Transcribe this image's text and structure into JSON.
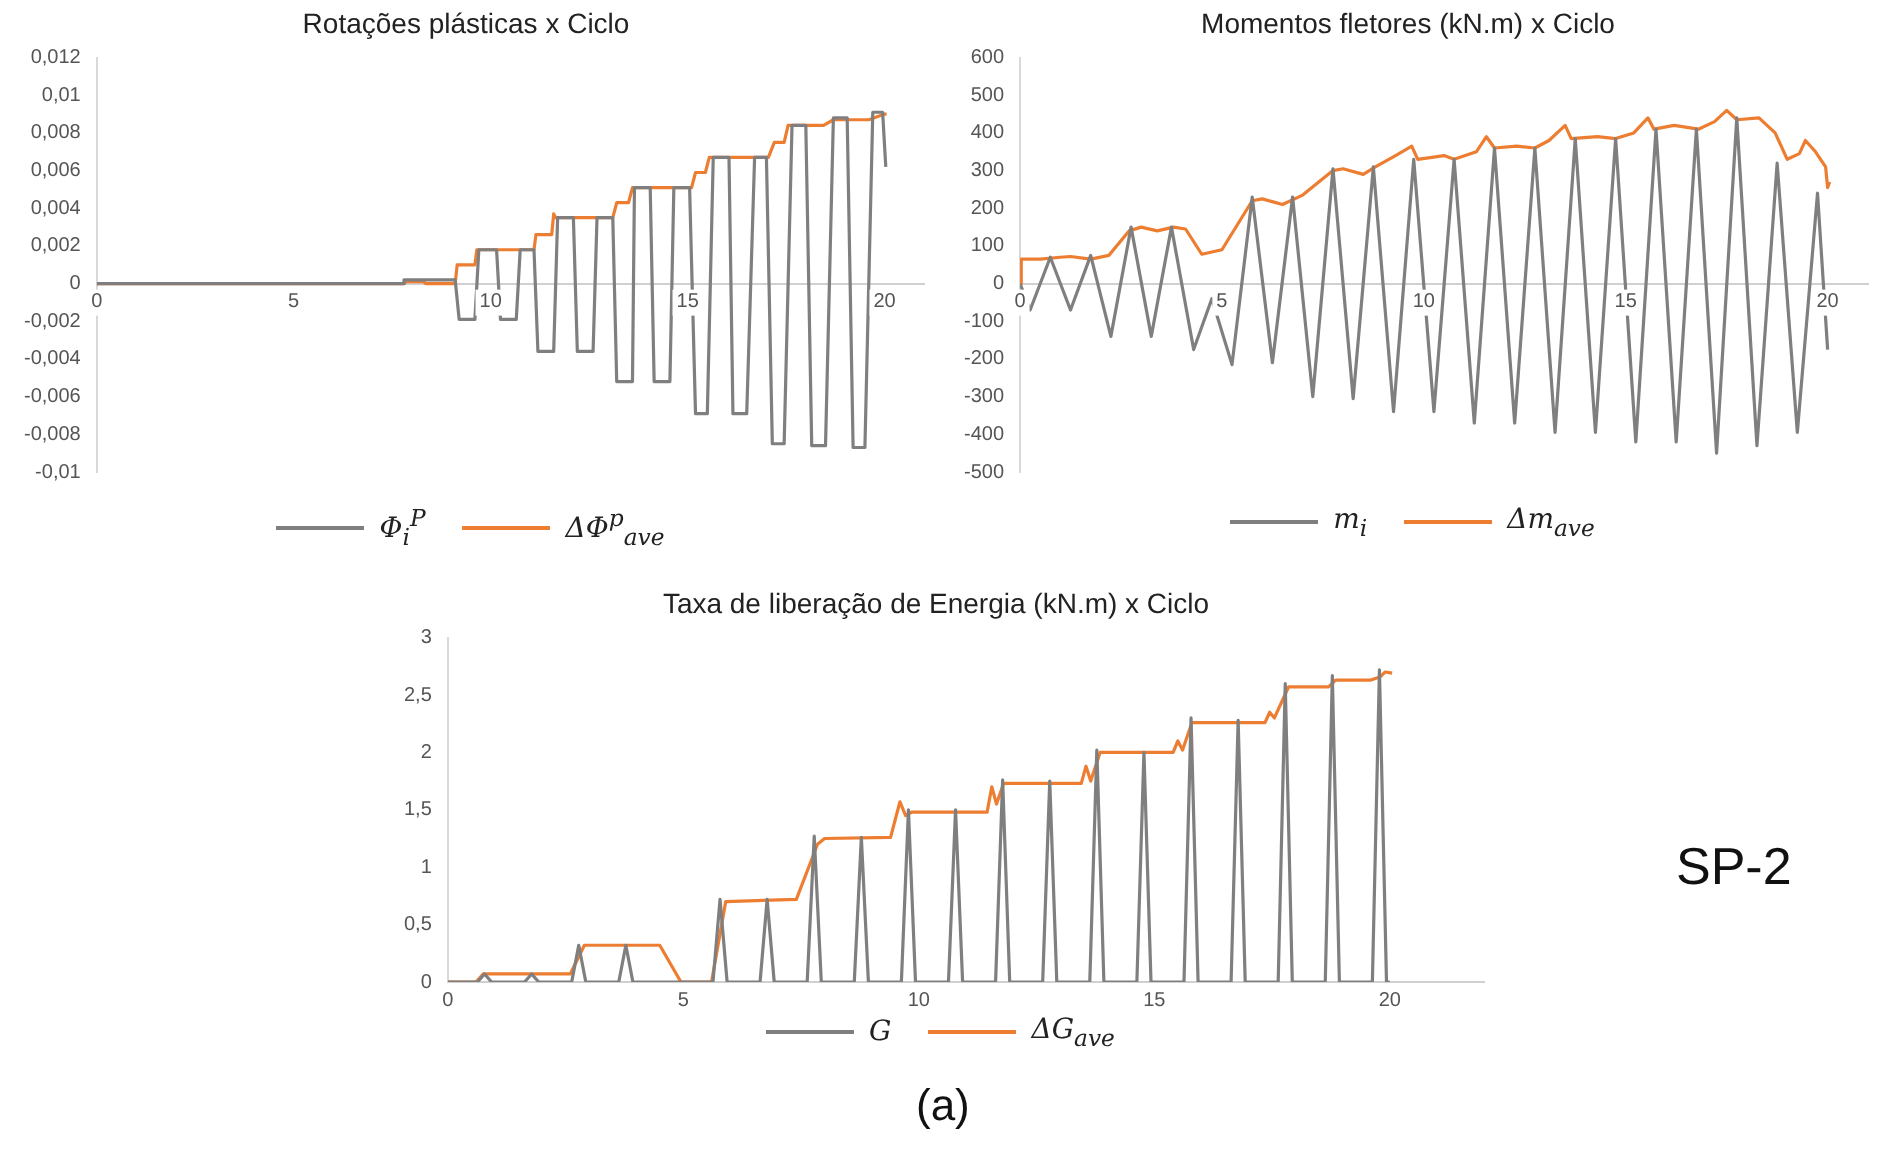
{
  "chart_data": [
    {
      "type": "line",
      "title": "Rotações plásticas x Ciclo",
      "legend": "bottom",
      "marker": "none",
      "xlim": [
        0,
        21
      ],
      "xticks": [
        0,
        5,
        10,
        15,
        20
      ],
      "ylim": [
        -0.01,
        0.012
      ],
      "yticks": [
        {
          "value": -0.01,
          "label": "-0,01"
        },
        {
          "value": -0.008,
          "label": "-0,008"
        },
        {
          "value": -0.006,
          "label": "-0,006"
        },
        {
          "value": -0.004,
          "label": "-0,004"
        },
        {
          "value": -0.002,
          "label": "-0,002"
        },
        0,
        {
          "value": 0.002,
          "label": "0,002"
        },
        {
          "value": 0.004,
          "label": "0,004"
        },
        {
          "value": 0.006,
          "label": "0,006"
        },
        {
          "value": 0.008,
          "label": "0,008"
        },
        {
          "value": 0.01,
          "label": "0,01"
        },
        {
          "value": 0.012,
          "label": "0,012"
        }
      ],
      "series": [
        {
          "name": "Φ$_{i}$$^{P}$",
          "color": "#7f7f7f",
          "x": [
            0,
            7.75,
            7.8,
            9.1,
            9.2,
            9.6,
            9.7,
            10.15,
            10.25,
            10.65,
            10.75,
            11.1,
            11.2,
            11.6,
            11.7,
            12.1,
            12.2,
            12.6,
            12.7,
            13.1,
            13.2,
            13.6,
            13.65,
            14.05,
            14.15,
            14.55,
            14.65,
            15.05,
            15.2,
            15.5,
            15.65,
            16.05,
            16.15,
            16.5,
            16.7,
            17.0,
            17.15,
            17.45,
            17.65,
            18.0,
            18.15,
            18.5,
            18.7,
            19.05,
            19.2,
            19.5,
            19.7,
            19.95,
            20.03
          ],
          "values": [
            0,
            0,
            0.0002,
            0.0002,
            -0.0019,
            -0.0019,
            0.0018,
            0.0018,
            -0.0019,
            -0.0019,
            0.0018,
            0.0018,
            -0.0036,
            -0.0036,
            0.0035,
            0.0035,
            -0.0036,
            -0.0036,
            0.0035,
            0.0035,
            -0.0052,
            -0.0052,
            0.0051,
            0.0051,
            -0.0052,
            -0.0052,
            0.0051,
            0.0051,
            -0.0069,
            -0.0069,
            0.0067,
            0.0067,
            -0.0069,
            -0.0069,
            0.0067,
            0.0067,
            -0.0085,
            -0.0085,
            0.0084,
            0.0084,
            -0.0086,
            -0.0086,
            0.0088,
            0.0088,
            -0.0087,
            -0.0087,
            0.0091,
            0.0091,
            0.0062
          ]
        },
        {
          "name": "ΔΦ$^{p}$$_{ave}$",
          "color": "#ed7d31",
          "x": [
            0,
            7.8,
            7.85,
            8.3,
            8.35,
            9.1,
            9.15,
            9.6,
            9.65,
            11.1,
            11.15,
            11.55,
            11.6,
            11.65,
            13.1,
            13.2,
            13.5,
            13.6,
            15.1,
            15.2,
            15.45,
            15.55,
            17.05,
            17.2,
            17.45,
            17.55,
            18.45,
            18.7,
            19.6,
            20.0,
            20.05
          ],
          "values": [
            0,
            0,
            0.0001,
            0.0001,
            0,
            0,
            0.001,
            0.001,
            0.0018,
            0.0018,
            0.0026,
            0.0026,
            0.0037,
            0.0035,
            0.0035,
            0.0043,
            0.0043,
            0.0051,
            0.0051,
            0.0059,
            0.0059,
            0.0067,
            0.0067,
            0.0075,
            0.0075,
            0.0084,
            0.0084,
            0.0087,
            0.0087,
            0.009,
            0.009
          ]
        }
      ]
    },
    {
      "type": "line",
      "title": "Momentos fletores (kN.m) x Ciclo",
      "legend": "bottom",
      "marker": "none",
      "xlim": [
        0,
        21
      ],
      "xticks": [
        0,
        5,
        10,
        15,
        20
      ],
      "ylim": [
        -500,
        600
      ],
      "yticks": [
        -500,
        -400,
        -300,
        -200,
        -100,
        0,
        100,
        200,
        300,
        400,
        500,
        600
      ],
      "series": [
        {
          "name": "m$_{i}$",
          "color": "#7f7f7f",
          "x": [
            0,
            0.25,
            0.75,
            1.25,
            1.75,
            2.25,
            2.75,
            3.25,
            3.75,
            4.3,
            4.75,
            5.25,
            5.75,
            6.25,
            6.75,
            7.25,
            7.75,
            8.25,
            8.75,
            9.25,
            9.75,
            10.25,
            10.75,
            11.25,
            11.75,
            12.25,
            12.75,
            13.25,
            13.75,
            14.25,
            14.75,
            15.25,
            15.75,
            16.25,
            16.75,
            17.25,
            17.75,
            18.25,
            18.75,
            19.25,
            19.75,
            20.0
          ],
          "values": [
            0,
            -70,
            70,
            -70,
            75,
            -140,
            150,
            -140,
            150,
            -175,
            -40,
            -215,
            230,
            -210,
            230,
            -300,
            305,
            -305,
            310,
            -340,
            330,
            -340,
            330,
            -370,
            360,
            -370,
            360,
            -395,
            385,
            -395,
            385,
            -420,
            410,
            -420,
            410,
            -450,
            440,
            -430,
            320,
            -395,
            240,
            -175
          ]
        },
        {
          "name": "Δm$_{ave}$",
          "color": "#ed7d31",
          "x": [
            0,
            0.03,
            0.5,
            1.0,
            1.25,
            1.75,
            2.2,
            2.7,
            3.0,
            3.4,
            3.8,
            4.1,
            4.5,
            5.0,
            5.75,
            6.0,
            6.5,
            7.0,
            7.75,
            8.0,
            8.5,
            8.8,
            9.3,
            9.7,
            9.85,
            10.2,
            10.5,
            10.75,
            11.3,
            11.55,
            11.75,
            12.3,
            12.75,
            13.1,
            13.5,
            13.65,
            14.3,
            14.75,
            15.2,
            15.55,
            15.7,
            16.2,
            16.8,
            17.2,
            17.5,
            17.75,
            18.3,
            18.7,
            19.0,
            19.3,
            19.45,
            19.7,
            19.95,
            20.0,
            20.05
          ],
          "values": [
            0,
            65,
            65,
            70,
            72,
            65,
            75,
            140,
            150,
            140,
            150,
            145,
            78,
            90,
            220,
            225,
            210,
            235,
            300,
            305,
            290,
            310,
            340,
            365,
            330,
            335,
            340,
            330,
            350,
            390,
            360,
            365,
            360,
            380,
            420,
            385,
            390,
            385,
            400,
            440,
            410,
            420,
            410,
            430,
            460,
            435,
            440,
            400,
            330,
            345,
            380,
            350,
            310,
            255,
            270
          ]
        }
      ]
    },
    {
      "type": "line",
      "title": "Taxa de liberação de Energia (kN.m) x Ciclo",
      "legend": "bottom",
      "marker": "none",
      "annotations": [
        "SP-2",
        "(a)"
      ],
      "xlim": [
        0,
        22
      ],
      "xticks": [
        0,
        5,
        10,
        15,
        20
      ],
      "ylim": [
        0,
        3
      ],
      "yticks": [
        0,
        {
          "value": 0.5,
          "label": "0,5"
        },
        1,
        {
          "value": 1.5,
          "label": "1,5"
        },
        2,
        {
          "value": 2.5,
          "label": "2,5"
        },
        3
      ],
      "series": [
        {
          "name": "G",
          "color": "#7f7f7f",
          "x": [
            0,
            0.63,
            0.78,
            0.93,
            1.63,
            1.78,
            1.93,
            2.63,
            2.78,
            2.93,
            3.63,
            3.78,
            3.93,
            5.63,
            5.78,
            5.93,
            6.63,
            6.78,
            6.93,
            7.63,
            7.78,
            7.93,
            8.63,
            8.78,
            8.93,
            9.63,
            9.78,
            9.93,
            10.63,
            10.78,
            10.93,
            11.63,
            11.78,
            11.93,
            12.63,
            12.78,
            12.93,
            13.63,
            13.78,
            13.93,
            14.63,
            14.78,
            14.93,
            15.63,
            15.78,
            15.93,
            16.63,
            16.78,
            16.93,
            17.63,
            17.78,
            17.93,
            18.63,
            18.78,
            18.93,
            19.63,
            19.78,
            19.93,
            20.0
          ],
          "values": [
            0,
            0,
            0.07,
            0,
            0,
            0.07,
            0,
            0,
            0.32,
            0,
            0,
            0.32,
            0,
            0,
            0.72,
            0,
            0,
            0.72,
            0,
            0,
            1.27,
            0,
            0,
            1.26,
            0,
            0,
            1.5,
            0,
            0,
            1.5,
            0,
            0,
            1.76,
            0,
            0,
            1.75,
            0,
            0,
            2.02,
            0,
            0,
            2.0,
            0,
            0,
            2.3,
            0,
            0,
            2.28,
            0,
            0,
            2.6,
            0,
            0,
            2.67,
            0,
            0,
            2.72,
            0,
            0
          ]
        },
        {
          "name": "ΔG$_{ave}$",
          "color": "#ed7d31",
          "x": [
            0,
            0.6,
            0.75,
            2.6,
            2.9,
            4.5,
            4.95,
            5.6,
            5.9,
            7.4,
            7.85,
            8.0,
            9.4,
            9.6,
            9.72,
            9.85,
            11.45,
            11.55,
            11.65,
            11.8,
            13.45,
            13.55,
            13.65,
            13.85,
            15.4,
            15.5,
            15.6,
            15.8,
            17.35,
            17.45,
            17.55,
            17.85,
            18.7,
            18.85,
            19.6,
            19.8,
            19.9,
            20.05
          ],
          "values": [
            0,
            0,
            0.07,
            0.07,
            0.32,
            0.32,
            0,
            0,
            0.7,
            0.72,
            1.2,
            1.25,
            1.26,
            1.57,
            1.45,
            1.48,
            1.48,
            1.7,
            1.55,
            1.73,
            1.73,
            1.88,
            1.75,
            2.0,
            2.0,
            2.1,
            2.02,
            2.26,
            2.26,
            2.35,
            2.3,
            2.57,
            2.57,
            2.63,
            2.63,
            2.66,
            2.7,
            2.69
          ]
        }
      ]
    }
  ]
}
